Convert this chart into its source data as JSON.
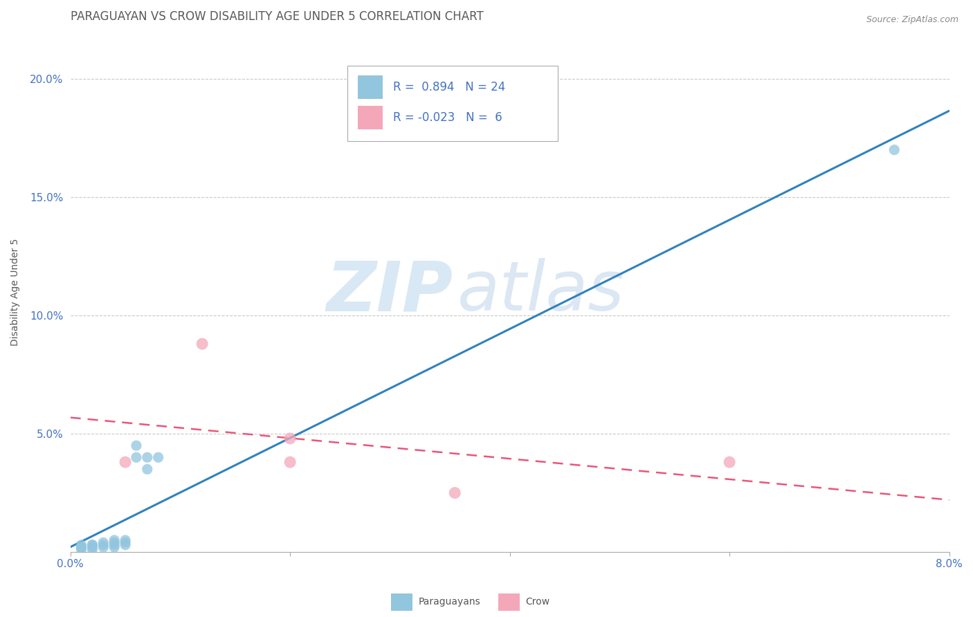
{
  "title": "PARAGUAYAN VS CROW DISABILITY AGE UNDER 5 CORRELATION CHART",
  "source": "Source: ZipAtlas.com",
  "ylabel": "Disability Age Under 5",
  "xlim": [
    0.0,
    0.08
  ],
  "ylim": [
    0.0,
    0.22
  ],
  "ytick_positions": [
    0.0,
    0.05,
    0.1,
    0.15,
    0.2
  ],
  "ytick_labels": [
    "",
    "5.0%",
    "10.0%",
    "15.0%",
    "20.0%"
  ],
  "paraguayan_x": [
    0.001,
    0.001,
    0.001,
    0.001,
    0.002,
    0.002,
    0.002,
    0.002,
    0.003,
    0.003,
    0.003,
    0.004,
    0.004,
    0.004,
    0.004,
    0.005,
    0.005,
    0.005,
    0.006,
    0.006,
    0.007,
    0.007,
    0.008,
    0.075
  ],
  "paraguayan_y": [
    0.001,
    0.002,
    0.002,
    0.003,
    0.001,
    0.002,
    0.003,
    0.003,
    0.002,
    0.003,
    0.004,
    0.002,
    0.003,
    0.004,
    0.005,
    0.003,
    0.004,
    0.005,
    0.04,
    0.045,
    0.035,
    0.04,
    0.04,
    0.17
  ],
  "crow_x": [
    0.005,
    0.012,
    0.035,
    0.06,
    0.02,
    0.02
  ],
  "crow_y": [
    0.038,
    0.088,
    0.025,
    0.038,
    0.048,
    0.038
  ],
  "R_paraguayan": 0.894,
  "N_paraguayan": 24,
  "R_crow": -0.023,
  "N_crow": 6,
  "paraguayan_color": "#92c5de",
  "crow_color": "#f4a7b9",
  "line_paraguayan_color": "#3182bd",
  "line_crow_color": "#e8567a",
  "watermark_zip": "ZIP",
  "watermark_atlas": "atlas",
  "background_color": "#ffffff",
  "title_color": "#595959",
  "axis_label_color": "#595959",
  "tick_color": "#4472c4",
  "grid_color": "#c8c8c8",
  "legend_text_color": "#333333",
  "legend_r_color": "#4472c4",
  "title_fontsize": 12,
  "label_fontsize": 10,
  "tick_fontsize": 11,
  "legend_fontsize": 12
}
